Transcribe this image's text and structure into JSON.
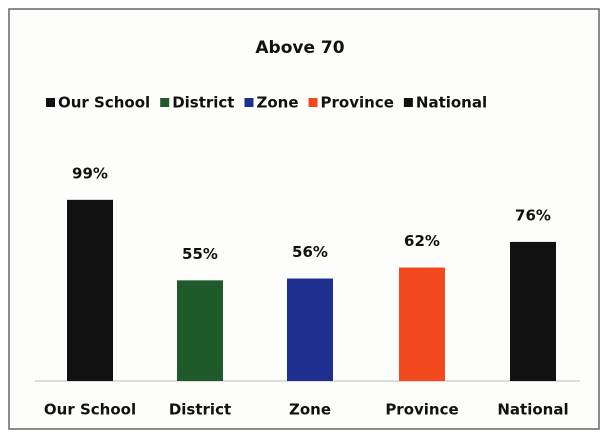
{
  "chart_data": {
    "type": "bar",
    "title": "Above 70",
    "categories": [
      "Our School",
      "District",
      "Zone",
      "Province",
      "National"
    ],
    "values": [
      99,
      55,
      56,
      62,
      76
    ],
    "value_labels": [
      "99%",
      "55%",
      "56%",
      "62%",
      "76%"
    ],
    "colors": [
      "#111111",
      "#1e5a2a",
      "#1f2f8f",
      "#f24a1e",
      "#111111"
    ],
    "legend": "top"
  }
}
